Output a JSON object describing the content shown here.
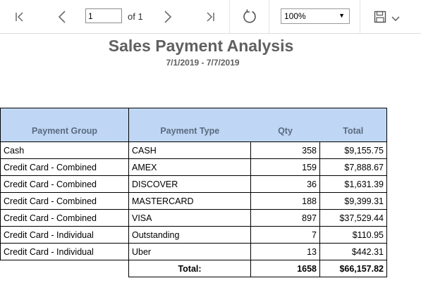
{
  "toolbar": {
    "first_page": "first-page",
    "prev_page": "previous-page",
    "page_value": "1",
    "page_of": "of 1",
    "next_page": "next-page",
    "last_page": "last-page",
    "refresh": "refresh",
    "zoom_value": "100%",
    "save": "save"
  },
  "report": {
    "title": "Sales Payment Analysis",
    "date_range": "7/1/2019 - 7/7/2019"
  },
  "table": {
    "headers": [
      "Payment Group",
      "Payment Type",
      "Qty",
      "Total"
    ],
    "rows": [
      [
        "Cash",
        "CASH",
        "358",
        "$9,155.75"
      ],
      [
        "Credit Card - Combined",
        "AMEX",
        "159",
        "$7,888.67"
      ],
      [
        "Credit Card - Combined",
        "DISCOVER",
        "36",
        "$1,631.39"
      ],
      [
        "Credit Card - Combined",
        "MASTERCARD",
        "188",
        "$9,399.31"
      ],
      [
        "Credit Card - Combined",
        "VISA",
        "897",
        "$37,529.44"
      ],
      [
        "Credit Card - Individual",
        "Outstanding",
        "7",
        "$110.95"
      ],
      [
        "Credit Card - Individual",
        "Uber",
        "13",
        "$442.31"
      ]
    ],
    "total_label": "Total:",
    "total_qty": "1658",
    "total_amount": "$66,157.82"
  }
}
